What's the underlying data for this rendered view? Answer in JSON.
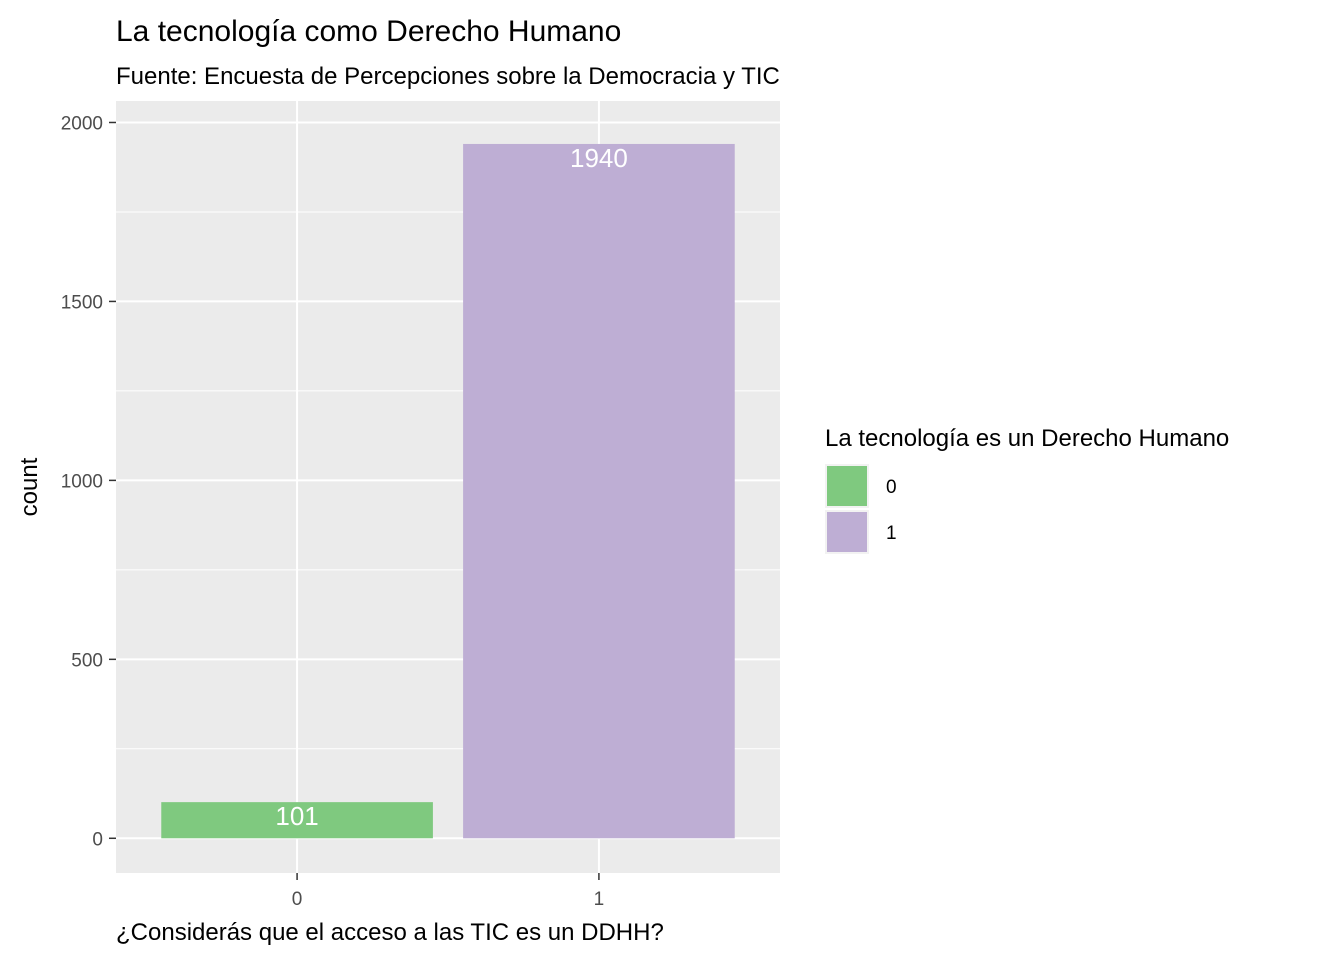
{
  "chart_data": {
    "type": "bar",
    "title": "La tecnología como Derecho Humano",
    "subtitle": "Fuente: Encuesta de Percepciones sobre la Democracia y TIC",
    "xlabel": "¿Considerás que el acceso a las TIC es un DDHH?",
    "ylabel": "count",
    "categories": [
      "0",
      "1"
    ],
    "values": [
      101,
      1940
    ],
    "data_labels": [
      "101",
      "1940"
    ],
    "colors": [
      "#7FC97F",
      "#BEAED4"
    ],
    "ylim": [
      -97,
      2060
    ],
    "yticks": [
      0,
      500,
      1000,
      1500,
      2000
    ],
    "yticks_labels": [
      "0",
      "500",
      "1000",
      "1500",
      "2000"
    ],
    "grid": true,
    "panel_background": "#EBEBEB",
    "grid_color": "#FFFFFF",
    "legend": {
      "title": "La tecnología es un Derecho Humano",
      "placement": "right",
      "entries": [
        {
          "label": "0",
          "color": "#7FC97F"
        },
        {
          "label": "1",
          "color": "#BEAED4"
        }
      ]
    }
  }
}
